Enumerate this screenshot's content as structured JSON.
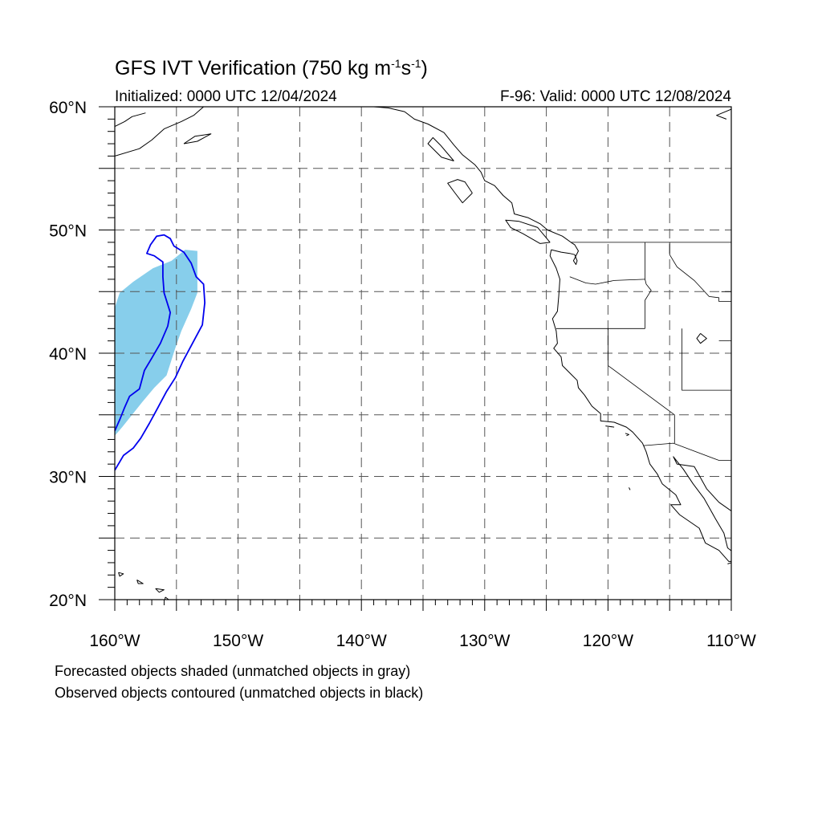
{
  "header": {
    "title_main": "GFS IVT Verification (750 kg m",
    "title_exp1": "-1",
    "title_mid": "s",
    "title_exp2": "-1",
    "title_end": ")",
    "initialized": "Initialized: 0000 UTC 12/04/2024",
    "valid": "F-96: Valid: 0000 UTC 12/08/2024"
  },
  "map": {
    "lon_range": [
      -160,
      -110
    ],
    "lat_range": [
      20,
      60
    ],
    "lat_labels": [
      {
        "lat": 60,
        "text": "60°N"
      },
      {
        "lat": 50,
        "text": "50°N"
      },
      {
        "lat": 40,
        "text": "40°N"
      },
      {
        "lat": 30,
        "text": "30°N"
      },
      {
        "lat": 20,
        "text": "20°N"
      }
    ],
    "lon_labels": [
      {
        "lon": -160,
        "text": "160°W"
      },
      {
        "lon": -150,
        "text": "150°W"
      },
      {
        "lon": -140,
        "text": "140°W"
      },
      {
        "lon": -130,
        "text": "130°W"
      },
      {
        "lon": -120,
        "text": "120°W"
      },
      {
        "lon": -110,
        "text": "110°W"
      }
    ],
    "gridline_lons": [
      -155,
      -150,
      -145,
      -140,
      -135,
      -130,
      -125,
      -120,
      -115
    ],
    "gridline_lats": [
      25,
      30,
      35,
      40,
      45,
      50,
      55
    ],
    "forecast_object": {
      "fill": "#87ceeb",
      "points": [
        [
          -160,
          33.3
        ],
        [
          -160,
          43.7
        ],
        [
          -159.6,
          44.9
        ],
        [
          -158.5,
          45.8
        ],
        [
          -156.9,
          46.9
        ],
        [
          -155.4,
          47.5
        ],
        [
          -154.3,
          48.4
        ],
        [
          -153.3,
          48.3
        ],
        [
          -153.3,
          46.2
        ],
        [
          -153.3,
          44.9
        ],
        [
          -153.8,
          43.6
        ],
        [
          -154.6,
          41.8
        ],
        [
          -155.1,
          40.4
        ],
        [
          -155.8,
          38.2
        ],
        [
          -156.8,
          37.2
        ],
        [
          -157.8,
          36.0
        ],
        [
          -158.6,
          35.0
        ],
        [
          -159.4,
          34.0
        ]
      ]
    },
    "observed_object": {
      "stroke": "#0000ee",
      "points": [
        [
          -160,
          30.5
        ],
        [
          -159.3,
          31.7
        ],
        [
          -158.5,
          32.3
        ],
        [
          -157.9,
          33.1
        ],
        [
          -157.2,
          34.3
        ],
        [
          -156.6,
          35.4
        ],
        [
          -155.8,
          36.9
        ],
        [
          -155.1,
          38.0
        ],
        [
          -154.5,
          39.3
        ],
        [
          -153.7,
          40.8
        ],
        [
          -152.9,
          42.3
        ],
        [
          -152.7,
          44.1
        ],
        [
          -152.8,
          45.6
        ],
        [
          -153.4,
          46.2
        ],
        [
          -153.8,
          47.3
        ],
        [
          -154.4,
          48.2
        ],
        [
          -155.2,
          48.7
        ],
        [
          -155.5,
          49.3
        ],
        [
          -156.0,
          49.6
        ],
        [
          -156.6,
          49.5
        ],
        [
          -157.1,
          48.8
        ],
        [
          -157.4,
          48.1
        ],
        [
          -156.8,
          47.9
        ],
        [
          -156.1,
          47.4
        ],
        [
          -156.1,
          46.2
        ],
        [
          -156.0,
          44.9
        ],
        [
          -155.5,
          43.3
        ],
        [
          -155.7,
          42.2
        ],
        [
          -156.3,
          40.8
        ],
        [
          -157.0,
          39.6
        ],
        [
          -157.6,
          38.6
        ],
        [
          -158.0,
          37.1
        ],
        [
          -158.8,
          36.5
        ],
        [
          -159.2,
          35.6
        ],
        [
          -159.6,
          34.6
        ],
        [
          -160,
          33.7
        ]
      ]
    },
    "state_lines": [
      [
        [
          -123.0,
          49.0
        ],
        [
          -110,
          49.0
        ]
      ],
      [
        [
          -124.2,
          42.0
        ],
        [
          -117.0,
          42.0
        ]
      ],
      [
        [
          -117.0,
          49.0
        ],
        [
          -117.0,
          46.0
        ],
        [
          -116.9,
          45.6
        ],
        [
          -116.5,
          45.1
        ],
        [
          -117.0,
          44.3
        ],
        [
          -117.0,
          42.0
        ]
      ],
      [
        [
          -115.0,
          49.0
        ],
        [
          -115.0,
          48.0
        ],
        [
          -114.4,
          47.0
        ],
        [
          -113.0,
          45.9
        ],
        [
          -111.8,
          44.6
        ],
        [
          -111.0,
          44.5
        ],
        [
          -111.0,
          44.2
        ],
        [
          -110,
          44.2
        ]
      ],
      [
        [
          -110.8,
          45.0
        ],
        [
          -110,
          45.0
        ],
        [
          -110,
          41.0
        ],
        [
          -111.0,
          41.0
        ]
      ],
      [
        [
          -114.0,
          42.0
        ],
        [
          -114.0,
          37.0
        ],
        [
          -110,
          37.0
        ]
      ],
      [
        [
          -120.0,
          42.0
        ],
        [
          -120.0,
          39.0
        ],
        [
          -114.6,
          35.0
        ],
        [
          -114.6,
          32.7
        ]
      ],
      [
        [
          -117.1,
          32.5
        ],
        [
          -114.7,
          32.7
        ],
        [
          -111.0,
          31.3
        ],
        [
          -110,
          31.3
        ]
      ],
      [
        [
          -123.1,
          46.2
        ],
        [
          -121.8,
          45.7
        ],
        [
          -121.0,
          45.6
        ],
        [
          -119.5,
          45.9
        ],
        [
          -117.0,
          46.0
        ]
      ]
    ],
    "coastlines": [
      [
        [
          -124.6,
          48.4
        ],
        [
          -124.7,
          47.9
        ],
        [
          -124.2,
          46.9
        ],
        [
          -123.9,
          46.0
        ],
        [
          -124.0,
          44.6
        ],
        [
          -124.1,
          43.4
        ],
        [
          -124.5,
          42.8
        ],
        [
          -124.2,
          41.8
        ],
        [
          -124.1,
          40.8
        ],
        [
          -124.4,
          40.4
        ],
        [
          -123.8,
          39.7
        ],
        [
          -123.7,
          39.0
        ],
        [
          -123.0,
          38.3
        ],
        [
          -122.5,
          37.8
        ],
        [
          -122.4,
          37.2
        ],
        [
          -121.9,
          36.6
        ],
        [
          -121.3,
          35.7
        ],
        [
          -120.6,
          35.1
        ],
        [
          -120.6,
          34.5
        ],
        [
          -119.5,
          34.4
        ],
        [
          -118.5,
          34.0
        ],
        [
          -118.0,
          33.6
        ],
        [
          -117.2,
          32.7
        ],
        [
          -116.9,
          32.0
        ],
        [
          -116.6,
          31.0
        ],
        [
          -116.0,
          30.2
        ],
        [
          -115.6,
          29.4
        ],
        [
          -114.5,
          28.5
        ],
        [
          -114.1,
          27.7
        ],
        [
          -114.9,
          27.7
        ],
        [
          -114.2,
          26.9
        ],
        [
          -112.6,
          25.8
        ],
        [
          -112.1,
          24.6
        ],
        [
          -111.0,
          24.0
        ],
        [
          -110.2,
          23.1
        ],
        [
          -109.6,
          23.1
        ],
        [
          -109.4,
          23.5
        ],
        [
          -110.3,
          24.2
        ],
        [
          -110.6,
          25.4
        ],
        [
          -111.3,
          26.6
        ],
        [
          -112.2,
          28.2
        ],
        [
          -113.1,
          29.4
        ],
        [
          -113.9,
          30.6
        ],
        [
          -114.7,
          31.6
        ],
        [
          -114.4,
          31.0
        ],
        [
          -113.0,
          30.8
        ],
        [
          -112.0,
          29.0
        ],
        [
          -111.0,
          27.9
        ],
        [
          -110.0,
          27.2
        ]
      ],
      [
        [
          -110,
          23.0
        ],
        [
          -110.3,
          22.9
        ]
      ],
      [
        [
          -124.6,
          48.4
        ],
        [
          -123.8,
          48.2
        ],
        [
          -123.1,
          48.1
        ],
        [
          -122.7,
          48.0
        ],
        [
          -122.5,
          47.5
        ],
        [
          -122.6,
          47.2
        ],
        [
          -122.8,
          47.5
        ],
        [
          -122.4,
          48.3
        ],
        [
          -122.7,
          48.8
        ],
        [
          -123.0,
          49.0
        ],
        [
          -123.7,
          49.5
        ],
        [
          -124.9,
          50.0
        ],
        [
          -125.5,
          50.5
        ],
        [
          -126.5,
          51.0
        ],
        [
          -127.6,
          51.3
        ],
        [
          -127.8,
          52.2
        ],
        [
          -128.5,
          52.8
        ],
        [
          -129.2,
          53.6
        ],
        [
          -130.0,
          54.0
        ],
        [
          -130.3,
          54.7
        ],
        [
          -130.8,
          55.3
        ],
        [
          -131.8,
          56.1
        ],
        [
          -132.5,
          56.9
        ],
        [
          -133.3,
          57.9
        ],
        [
          -134.6,
          58.6
        ],
        [
          -135.7,
          59.0
        ],
        [
          -136.5,
          59.6
        ],
        [
          -137.8,
          59.9
        ],
        [
          -139.0,
          60.0
        ]
      ],
      [
        [
          -124.7,
          49.0
        ],
        [
          -125.5,
          48.9
        ],
        [
          -126.9,
          49.7
        ],
        [
          -127.9,
          50.2
        ],
        [
          -128.3,
          50.8
        ],
        [
          -127.2,
          50.7
        ],
        [
          -125.7,
          50.2
        ],
        [
          -124.7,
          49.0
        ]
      ],
      [
        [
          -131.0,
          53.0
        ],
        [
          -131.8,
          52.2
        ],
        [
          -132.4,
          53.0
        ],
        [
          -133.0,
          53.8
        ],
        [
          -132.2,
          54.1
        ],
        [
          -131.6,
          53.9
        ],
        [
          -131.0,
          53.0
        ]
      ],
      [
        [
          -132.5,
          55.6
        ],
        [
          -133.5,
          55.9
        ],
        [
          -134.6,
          57.0
        ],
        [
          -134.2,
          57.5
        ],
        [
          -133.6,
          56.9
        ],
        [
          -132.5,
          55.6
        ]
      ],
      [
        [
          -160,
          56.0
        ],
        [
          -158.0,
          56.6
        ],
        [
          -157.0,
          57.3
        ],
        [
          -156.0,
          58.2
        ],
        [
          -154.6,
          58.8
        ],
        [
          -153.6,
          59.3
        ],
        [
          -152.8,
          60.0
        ]
      ],
      [
        [
          -154.4,
          57.0
        ],
        [
          -153.5,
          57.6
        ],
        [
          -152.2,
          57.8
        ],
        [
          -153.3,
          57.2
        ],
        [
          -154.4,
          57.0
        ]
      ],
      [
        [
          -160,
          58.4
        ],
        [
          -159.2,
          58.8
        ],
        [
          -158.6,
          59.2
        ],
        [
          -157.5,
          59.5
        ]
      ],
      [
        [
          -110,
          59.8
        ],
        [
          -111.2,
          59.3
        ],
        [
          -110.4,
          59.0
        ]
      ],
      [
        [
          -155.9,
          20.2
        ],
        [
          -155.1,
          19.6
        ],
        [
          -155.6,
          19.0
        ],
        [
          -156.0,
          19.7
        ],
        [
          -155.9,
          20.2
        ]
      ],
      [
        [
          -156.7,
          20.9
        ],
        [
          -156.0,
          20.8
        ],
        [
          -156.4,
          20.6
        ],
        [
          -156.7,
          20.9
        ]
      ],
      [
        [
          -158.2,
          21.6
        ],
        [
          -157.7,
          21.3
        ],
        [
          -158.1,
          21.3
        ],
        [
          -158.2,
          21.6
        ]
      ],
      [
        [
          -159.7,
          22.2
        ],
        [
          -159.3,
          22.1
        ],
        [
          -159.6,
          21.9
        ],
        [
          -159.7,
          22.2
        ]
      ],
      [
        [
          -112.5,
          41.6
        ],
        [
          -112.0,
          41.2
        ],
        [
          -112.5,
          40.8
        ],
        [
          -112.8,
          41.2
        ],
        [
          -112.5,
          41.6
        ]
      ],
      [
        [
          -118.6,
          33.5
        ],
        [
          -118.3,
          33.4
        ],
        [
          -118.5,
          33.3
        ]
      ],
      [
        [
          -120.2,
          34.1
        ],
        [
          -119.5,
          34.0
        ]
      ],
      [
        [
          -118.3,
          29.1
        ],
        [
          -118.2,
          28.9
        ]
      ]
    ]
  },
  "footer": {
    "line1": "Forecasted objects shaded (unmatched objects in gray)",
    "line2": "Observed objects contoured (unmatched objects in black)"
  }
}
